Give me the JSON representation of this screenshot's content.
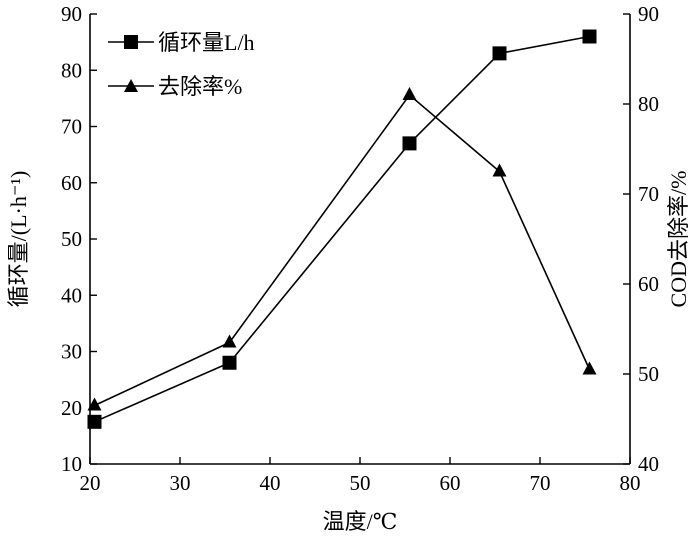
{
  "chart_data": {
    "type": "line",
    "xlabel": "温度/℃",
    "ylabel_left": "循环量/(L·h⁻¹)",
    "ylabel_right": "COD去除率/%",
    "xlim": [
      20,
      80
    ],
    "ylim_left": [
      10,
      90
    ],
    "ylim_right": [
      40,
      90
    ],
    "xticks": [
      20,
      30,
      40,
      50,
      60,
      70,
      80
    ],
    "yticks_left": [
      10,
      20,
      30,
      40,
      50,
      60,
      70,
      80,
      90
    ],
    "yticks_right": [
      40,
      50,
      60,
      70,
      80,
      90
    ],
    "grid": false,
    "legend_position": "top-left",
    "series": [
      {
        "name": "循环量L/h",
        "axis": "left",
        "marker": "square",
        "x": [
          20.5,
          35.5,
          55.5,
          65.5,
          75.5
        ],
        "values": [
          17.5,
          28,
          67,
          83,
          86
        ]
      },
      {
        "name": "去除率%",
        "axis": "right",
        "marker": "triangle",
        "x": [
          20.5,
          35.5,
          55.5,
          65.5,
          75.5
        ],
        "values": [
          46.5,
          53.5,
          81,
          72.5,
          50.5
        ]
      }
    ],
    "colors": {
      "line": "#000000",
      "background": "#ffffff"
    }
  }
}
